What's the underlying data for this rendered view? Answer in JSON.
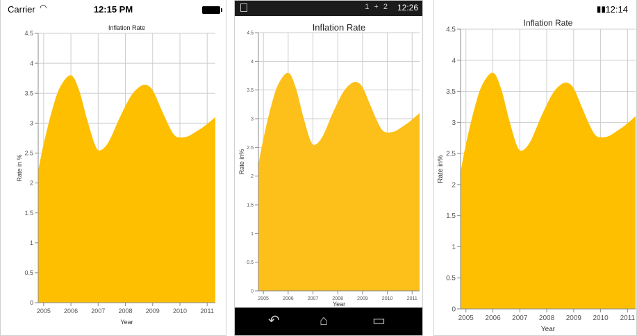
{
  "ios_status": {
    "carrier": "Carrier",
    "wifi_icon": "wifi-icon",
    "time": "12:15 PM",
    "battery_icon": "battery-icon"
  },
  "android_status": {
    "icons": "1 + 2",
    "time": "12:26"
  },
  "android_nav": {
    "back": "back-icon",
    "home": "home-icon",
    "recents": "recents-icon"
  },
  "wp_status": {
    "battery_icon": "battery-icon",
    "time": "12:14"
  },
  "chart_data": {
    "type": "area",
    "title": "Inflation Rate",
    "xlabel": "Year",
    "ylabels": {
      "ios": "Rate in %",
      "android": "Rate in%",
      "wp": "Rate in%"
    },
    "x": [
      2005,
      2006,
      2007,
      2008,
      2009,
      2010,
      2011
    ],
    "xticks": [
      "2005",
      "2006",
      "2007",
      "2008",
      "2009",
      "2010",
      "2011"
    ],
    "xlim": [
      2004.8,
      2011.3
    ],
    "ylim": [
      0,
      4.5
    ],
    "yticks": [
      "0",
      "0.5",
      "1",
      "1.5",
      "2",
      "2.5",
      "3",
      "3.5",
      "4",
      "4.5"
    ],
    "series": [
      {
        "x": [
          2004.8,
          2005.0,
          2005.3,
          2005.6,
          2006.0,
          2006.3,
          2006.6,
          2006.9,
          2007.1,
          2007.4,
          2007.8,
          2008.2,
          2008.5,
          2008.75,
          2009.0,
          2009.3,
          2009.6,
          2009.8,
          2010.0,
          2010.3,
          2010.6,
          2010.9,
          2011.3
        ],
        "y": [
          2.2,
          2.65,
          3.2,
          3.6,
          3.8,
          3.55,
          3.05,
          2.62,
          2.55,
          2.7,
          3.1,
          3.45,
          3.6,
          3.64,
          3.55,
          3.25,
          2.95,
          2.8,
          2.76,
          2.78,
          2.86,
          2.95,
          3.1
        ]
      }
    ],
    "grid": true,
    "legend": "none"
  }
}
